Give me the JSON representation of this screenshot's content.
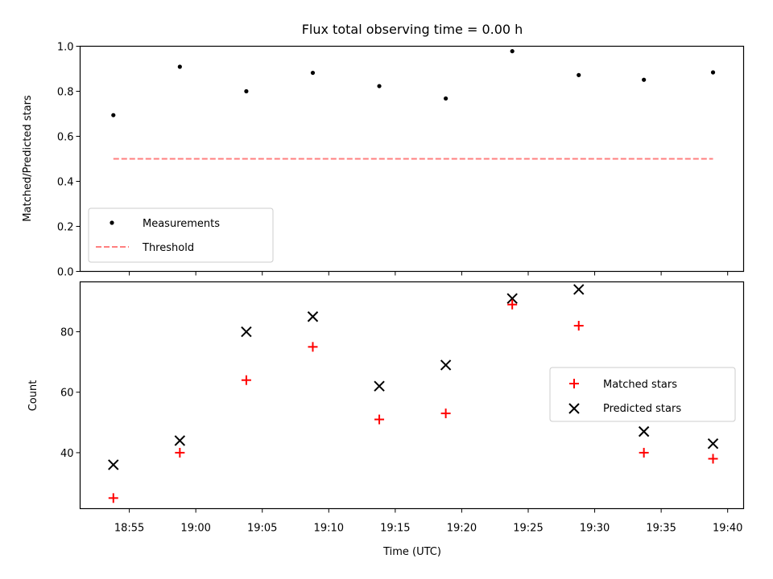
{
  "chart_data": [
    {
      "type": "scatter",
      "title": "Flux total observing time = 0.00 h",
      "xlabel": "",
      "ylabel": "Matched/Predicted stars",
      "ylim": [
        0.0,
        1.0
      ],
      "yticks": [
        0.0,
        0.2,
        0.4,
        0.6,
        0.8,
        1.0
      ],
      "ytick_labels": [
        "0.0",
        "0.2",
        "0.4",
        "0.6",
        "0.8",
        "1.0"
      ],
      "x_minutes": [
        53.8,
        58.8,
        63.8,
        68.8,
        73.8,
        78.8,
        83.8,
        88.8,
        93.7,
        98.9
      ],
      "series": [
        {
          "name": "Measurements",
          "marker": "dot",
          "color": "#000000",
          "values": [
            0.694,
            0.909,
            0.8,
            0.882,
            0.823,
            0.768,
            0.978,
            0.872,
            0.851,
            0.884
          ]
        },
        {
          "name": "Threshold",
          "marker": "dashed-line",
          "color": "#ff7f7f",
          "values": [
            0.5,
            0.5
          ]
        }
      ],
      "threshold_x_minutes": [
        53.8,
        98.9
      ],
      "legend_position": "lower-left",
      "grid": false
    },
    {
      "type": "scatter",
      "xlabel": "Time (UTC)",
      "ylabel": "Count",
      "ylim": [
        21.5,
        96.5
      ],
      "yticks": [
        40,
        60,
        80
      ],
      "ytick_labels": [
        "40",
        "60",
        "80"
      ],
      "xlim_minutes": [
        51.3,
        101.2
      ],
      "xticks_minutes": [
        55,
        60,
        65,
        70,
        75,
        80,
        85,
        90,
        95,
        100
      ],
      "xtick_labels": [
        "18:55",
        "19:00",
        "19:05",
        "19:10",
        "19:15",
        "19:20",
        "19:25",
        "19:30",
        "19:35",
        "19:40"
      ],
      "x_minutes": [
        53.8,
        58.8,
        63.8,
        68.8,
        73.8,
        78.8,
        83.8,
        88.8,
        93.7,
        98.9
      ],
      "series": [
        {
          "name": "Matched stars",
          "marker": "plus",
          "color": "#ff0000",
          "values": [
            25,
            40,
            64,
            75,
            51,
            53,
            89,
            82,
            40,
            38
          ]
        },
        {
          "name": "Predicted stars",
          "marker": "x",
          "color": "#000000",
          "values": [
            36,
            44,
            80,
            85,
            62,
            69,
            91,
            94,
            47,
            43
          ]
        }
      ],
      "legend_position": "center-right",
      "grid": false
    }
  ]
}
